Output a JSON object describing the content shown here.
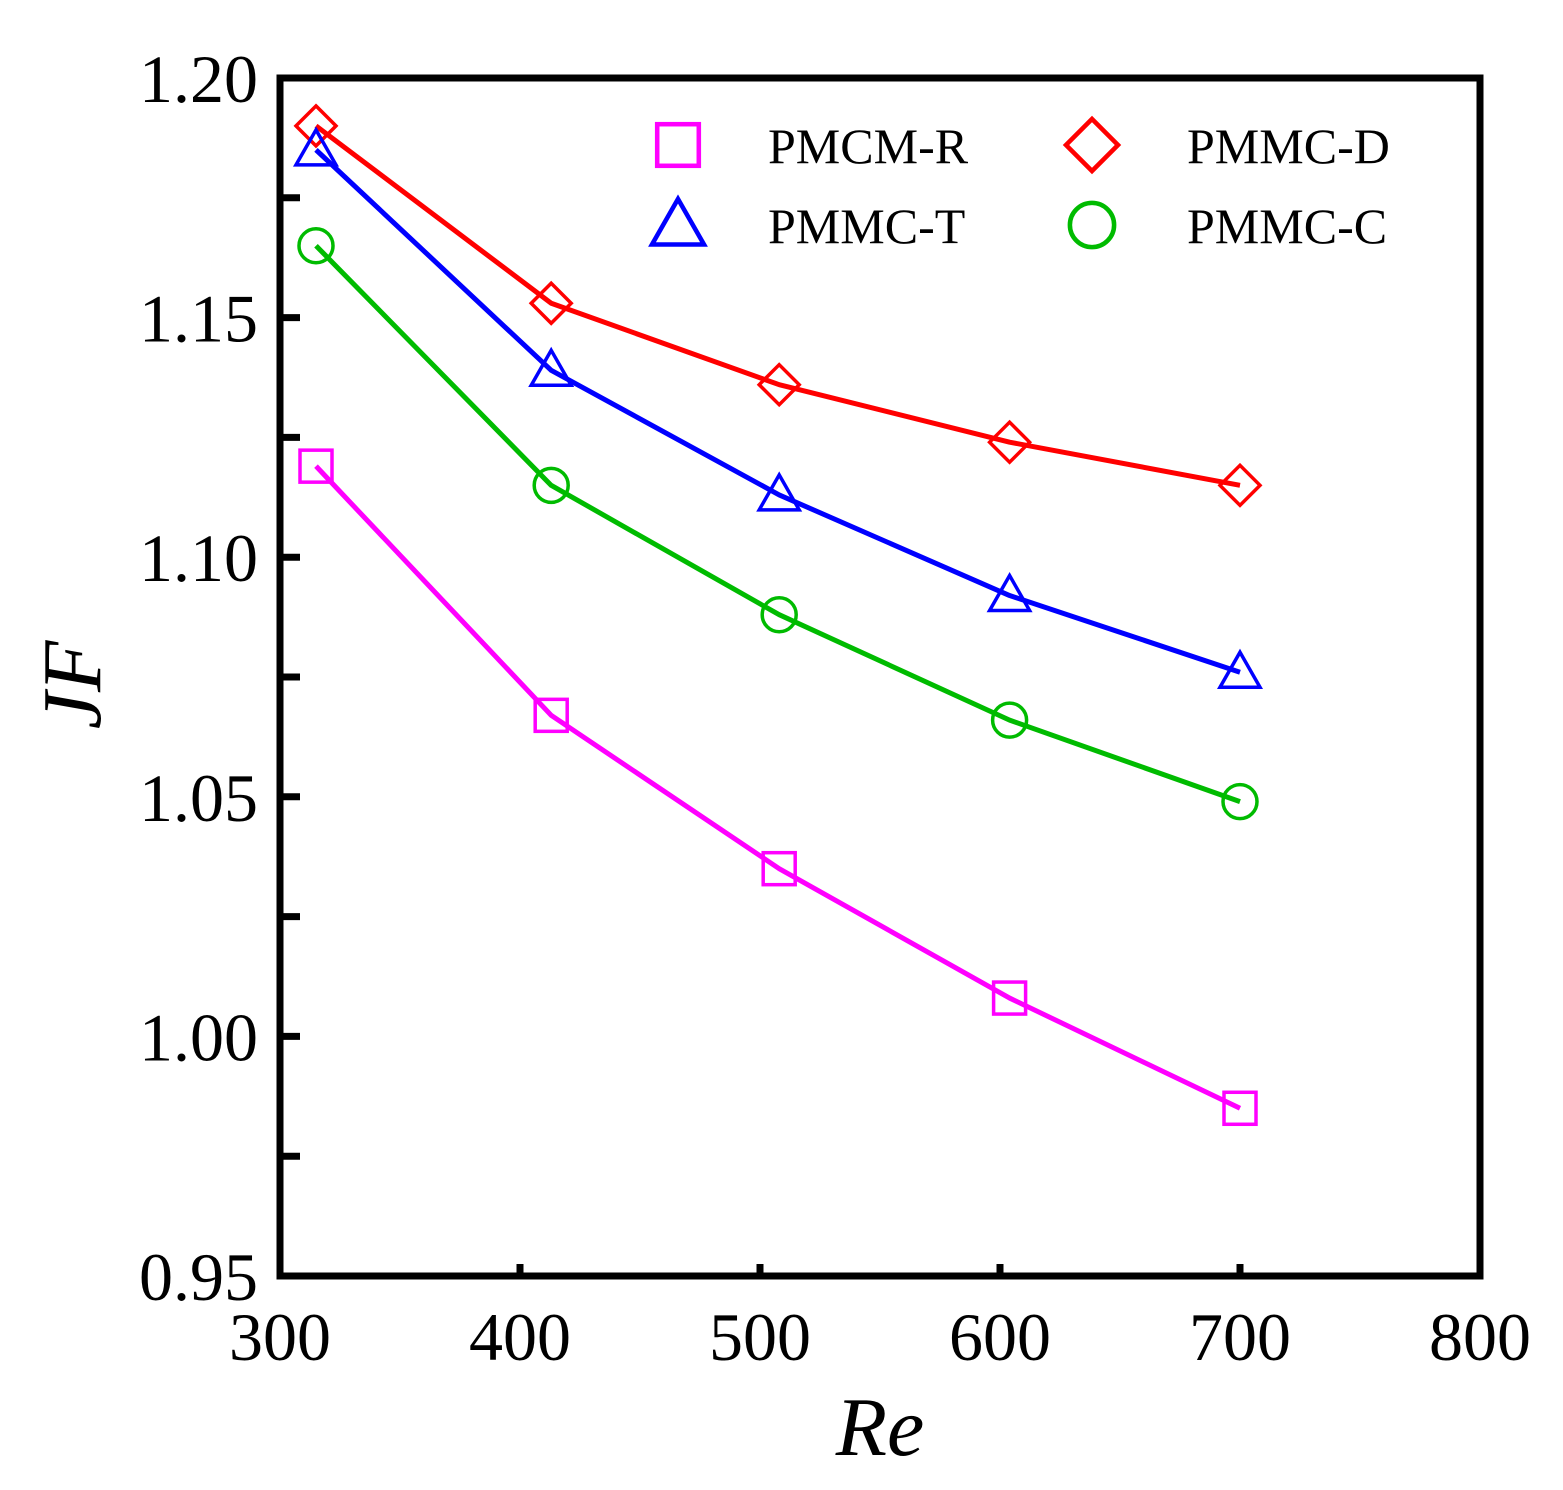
{
  "chart_data": {
    "type": "line",
    "title": "",
    "xlabel": "Re",
    "ylabel": "JF",
    "xlim": [
      300,
      800
    ],
    "ylim": [
      0.95,
      1.2
    ],
    "x_ticks": [
      "300",
      "400",
      "500",
      "600",
      "700",
      "800"
    ],
    "y_ticks": [
      "0.95",
      "1.00",
      "1.05",
      "1.10",
      "1.15",
      "1.20"
    ],
    "grid": false,
    "legend_position": "top-right",
    "series": [
      {
        "name": "PMCM-R",
        "marker": "square",
        "color": "#ff00ff",
        "x": [
          315,
          413,
          508,
          604,
          700
        ],
        "y": [
          1.119,
          1.067,
          1.035,
          1.008,
          0.985
        ]
      },
      {
        "name": "PMMC-D",
        "marker": "diamond",
        "color": "#ff0000",
        "x": [
          315,
          413,
          508,
          604,
          700
        ],
        "y": [
          1.19,
          1.153,
          1.136,
          1.124,
          1.115
        ]
      },
      {
        "name": "PMMC-T",
        "marker": "triangle",
        "color": "#0000ff",
        "x": [
          315,
          413,
          508,
          604,
          700
        ],
        "y": [
          1.185,
          1.139,
          1.113,
          1.092,
          1.076
        ]
      },
      {
        "name": "PMMC-C",
        "marker": "circle",
        "color": "#00bb00",
        "x": [
          315,
          413,
          508,
          604,
          700
        ],
        "y": [
          1.165,
          1.115,
          1.088,
          1.066,
          1.049
        ]
      }
    ]
  }
}
